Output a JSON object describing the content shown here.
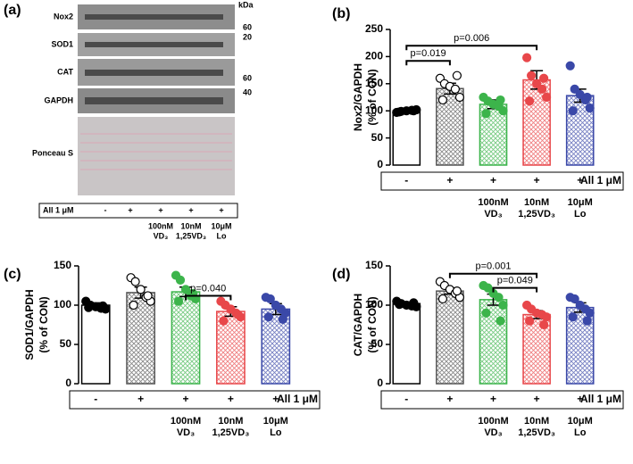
{
  "blot": {
    "panel": "(a)",
    "unit": "kDa",
    "rows": [
      "Nox2",
      "SOD1",
      "CAT",
      "GAPDH",
      "Ponceau S"
    ],
    "markers": [
      "60",
      "20",
      "60",
      "40"
    ],
    "row_label": "All 1 μM",
    "categories": [
      "-",
      "+",
      "+",
      "+",
      "+"
    ],
    "groups": [
      null,
      null,
      [
        "100nM",
        "VD₃"
      ],
      [
        "10nM",
        "1,25VD₃"
      ],
      [
        "10μM",
        "Lo"
      ]
    ]
  },
  "chart_data": [
    {
      "type": "bar",
      "panel": "(b)",
      "ylabel": [
        "Nox2/GAPDH",
        "(% of CON)"
      ],
      "categories": [
        "-",
        "+",
        "+",
        "+",
        "+"
      ],
      "row_label": "All 1 μM",
      "groups": [
        null,
        null,
        [
          "100nM",
          "VD₃"
        ],
        [
          "10nM",
          "1,25VD₃"
        ],
        [
          "10μM",
          "Lo"
        ]
      ],
      "colors": [
        "#000000",
        "#555555",
        "#3cb44b",
        "#e8474a",
        "#3a48a8"
      ],
      "values": [
        100,
        141,
        112,
        157,
        128
      ],
      "errors": [
        3,
        10,
        8,
        17,
        12
      ],
      "points": [
        [
          97,
          99,
          100,
          101,
          102,
          98,
          100
        ],
        [
          160,
          150,
          145,
          140,
          125,
          120,
          165
        ],
        [
          125,
          118,
          112,
          108,
          100,
          95,
          120
        ],
        [
          198,
          165,
          150,
          140,
          125,
          118,
          160
        ],
        [
          183,
          140,
          130,
          120,
          105,
          100,
          125
        ]
      ],
      "ylim": [
        0,
        250
      ],
      "yticks": [
        0,
        50,
        100,
        150,
        200,
        250
      ],
      "annotations": [
        "p=0.019",
        "p=0.006"
      ]
    },
    {
      "type": "bar",
      "panel": "(c)",
      "ylabel": [
        "SOD1/GAPDH",
        "(% of CON)"
      ],
      "categories": [
        "-",
        "+",
        "+",
        "+",
        "+"
      ],
      "row_label": "All 1 μM",
      "groups": [
        null,
        null,
        [
          "100nM",
          "VD₃"
        ],
        [
          "10nM",
          "1,25VD₃"
        ],
        [
          "10μM",
          "Lo"
        ]
      ],
      "colors": [
        "#000000",
        "#555555",
        "#3cb44b",
        "#e8474a",
        "#3a48a8"
      ],
      "values": [
        100,
        116,
        117,
        92,
        95
      ],
      "errors": [
        3,
        7,
        6,
        6,
        7
      ],
      "points": [
        [
          105,
          100,
          98,
          96,
          95,
          97,
          99
        ],
        [
          135,
          130,
          120,
          110,
          105,
          100,
          112
        ],
        [
          138,
          132,
          120,
          112,
          108,
          105,
          115
        ],
        [
          105,
          100,
          95,
          90,
          85,
          80,
          88
        ],
        [
          110,
          108,
          100,
          95,
          90,
          85,
          82
        ]
      ],
      "ylim": [
        0,
        150
      ],
      "yticks": [
        0,
        50,
        100,
        150
      ],
      "annotations": [
        "p=0.040"
      ]
    },
    {
      "type": "bar",
      "panel": "(d)",
      "ylabel": [
        "CAT/GAPDH",
        "(% of CON)"
      ],
      "categories": [
        "-",
        "+",
        "+",
        "+",
        "+"
      ],
      "row_label": "All 1 μM",
      "groups": [
        null,
        null,
        [
          "100nM",
          "VD₃"
        ],
        [
          "10nM",
          "1,25VD₃"
        ],
        [
          "10μM",
          "Lo"
        ]
      ],
      "colors": [
        "#000000",
        "#555555",
        "#3cb44b",
        "#e8474a",
        "#3a48a8"
      ],
      "values": [
        102,
        118,
        107,
        88,
        97
      ],
      "errors": [
        2,
        4,
        7,
        5,
        6
      ],
      "points": [
        [
          105,
          102,
          100,
          99,
          98,
          101,
          103
        ],
        [
          130,
          125,
          120,
          115,
          110,
          108,
          118
        ],
        [
          125,
          122,
          115,
          110,
          100,
          90,
          80
        ],
        [
          100,
          95,
          90,
          88,
          85,
          80,
          75
        ],
        [
          110,
          108,
          100,
          95,
          90,
          85,
          80
        ]
      ],
      "ylim": [
        0,
        150
      ],
      "yticks": [
        0,
        50,
        100,
        150
      ],
      "annotations": [
        "p=0.001",
        "p=0.049"
      ]
    }
  ]
}
